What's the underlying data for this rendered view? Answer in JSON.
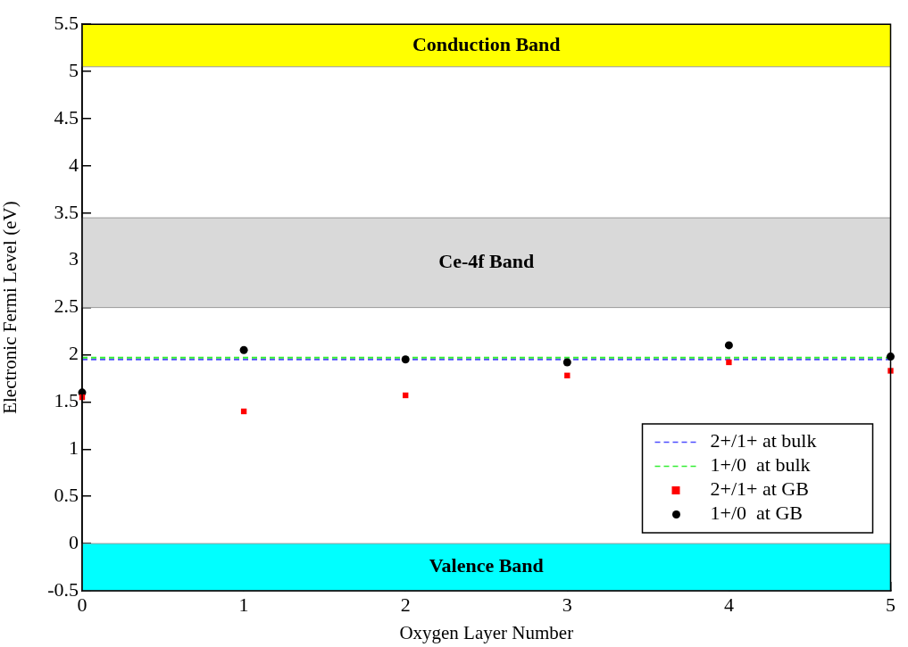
{
  "chart_data": {
    "type": "scatter",
    "xlabel": "Oxygen Layer Number",
    "ylabel": "Electronic Fermi Level (eV)",
    "x": [
      0,
      1,
      2,
      3,
      4,
      5
    ],
    "xlim": [
      0,
      5
    ],
    "xticks": [
      0,
      1,
      2,
      3,
      4,
      5
    ],
    "ylim": [
      -0.5,
      5.5
    ],
    "yticks": [
      -0.5,
      0,
      0.5,
      1,
      1.5,
      2,
      2.5,
      3,
      3.5,
      4,
      4.5,
      5,
      5.5
    ],
    "series": [
      {
        "name": "2+/1+ at GB",
        "color": "#ff0000",
        "marker": "square",
        "values": [
          1.55,
          1.4,
          1.57,
          1.78,
          1.92,
          1.83
        ]
      },
      {
        "name": "1+/0  at GB",
        "color": "#000000",
        "marker": "circle",
        "values": [
          1.6,
          2.05,
          1.95,
          1.92,
          2.1,
          1.98
        ]
      }
    ],
    "ref_lines": [
      {
        "axis": "y",
        "value": 1.95,
        "label": "2+/1+ at bulk",
        "color": "#4d4dff",
        "line_style": "dashed"
      },
      {
        "axis": "y",
        "value": 1.97,
        "label": "1+/0  at bulk",
        "color": "#33ee33",
        "line_style": "dashed"
      }
    ],
    "bands": [
      {
        "axis": "y",
        "from": 5.05,
        "to": 5.5,
        "label": "Conduction Band",
        "color": "#ffff00"
      },
      {
        "axis": "y",
        "from": 2.5,
        "to": 3.45,
        "label": "Ce-4f Band",
        "color": "#d9d9d9"
      },
      {
        "axis": "y",
        "from": -0.5,
        "to": 0,
        "label": "Valence Band",
        "color": "#00ffff"
      }
    ],
    "legend": "bottom right",
    "grid": false
  }
}
